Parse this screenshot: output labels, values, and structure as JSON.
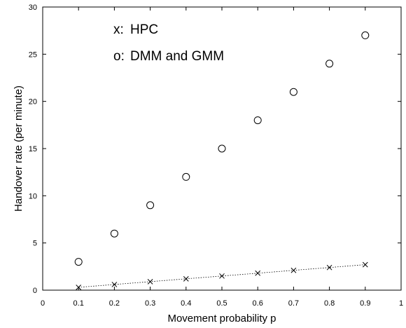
{
  "chart_data": {
    "type": "scatter",
    "title": "",
    "xlabel": "Movement probability p",
    "ylabel": "Handover rate (per minute)",
    "xlim": [
      0,
      1
    ],
    "ylim": [
      0,
      30
    ],
    "x_ticks": [
      "0",
      "0.1",
      "0.2",
      "0.3",
      "0.4",
      "0.5",
      "0.6",
      "0.7",
      "0.8",
      "0.9",
      "1"
    ],
    "y_ticks": [
      "0",
      "5",
      "10",
      "15",
      "20",
      "25",
      "30"
    ],
    "grid": false,
    "legend": [
      {
        "marker": "x:",
        "label": "HPC"
      },
      {
        "marker": "o:",
        "label": "DMM and GMM"
      }
    ],
    "series": [
      {
        "name": "HPC",
        "marker": "x",
        "line": "dotted",
        "x": [
          0.1,
          0.2,
          0.3,
          0.4,
          0.5,
          0.6,
          0.7,
          0.8,
          0.9
        ],
        "y": [
          0.3,
          0.6,
          0.9,
          1.2,
          1.5,
          1.8,
          2.1,
          2.4,
          2.7
        ]
      },
      {
        "name": "DMM and GMM",
        "marker": "o",
        "line": "none",
        "x": [
          0.1,
          0.2,
          0.3,
          0.4,
          0.5,
          0.6,
          0.7,
          0.8,
          0.9
        ],
        "y": [
          3,
          6,
          9,
          12,
          15,
          18,
          21,
          24,
          27
        ]
      }
    ]
  }
}
